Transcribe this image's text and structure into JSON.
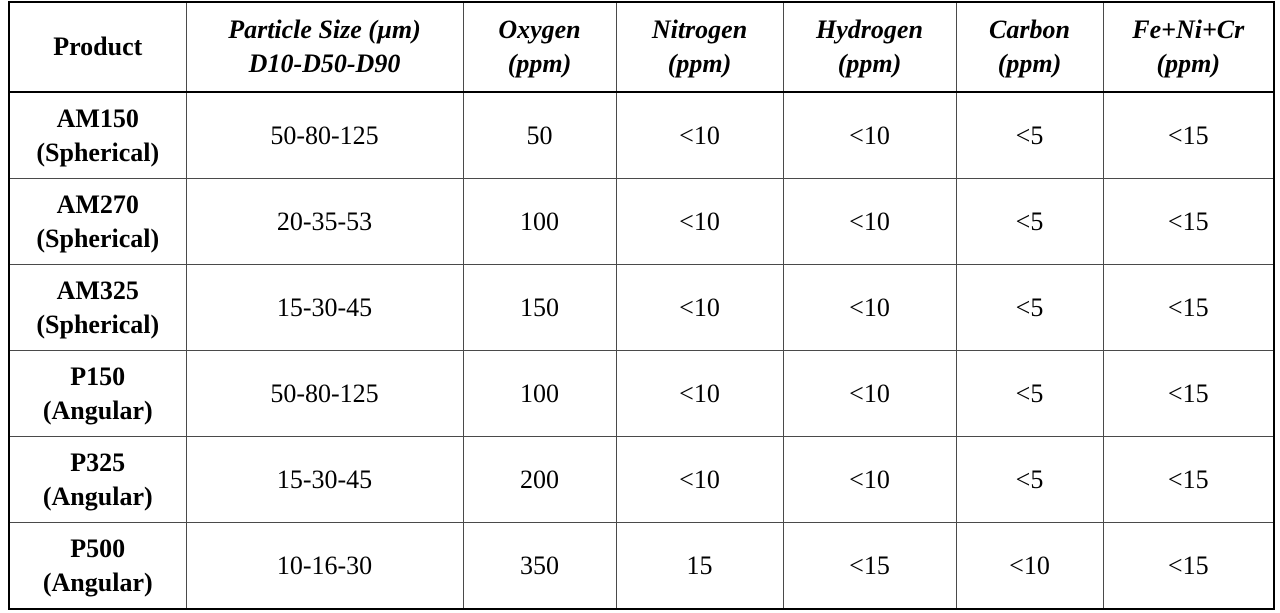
{
  "table": {
    "headers": [
      {
        "line1": "Product",
        "line2": ""
      },
      {
        "line1": "Particle Size (µm)",
        "line2": "D10-D50-D90"
      },
      {
        "line1": "Oxygen",
        "line2": "(ppm)"
      },
      {
        "line1": "Nitrogen",
        "line2": "(ppm)"
      },
      {
        "line1": "Hydrogen",
        "line2": "(ppm)"
      },
      {
        "line1": "Carbon",
        "line2": "(ppm)"
      },
      {
        "line1": "Fe+Ni+Cr",
        "line2": "(ppm)"
      }
    ],
    "rows": [
      {
        "product": "AM150",
        "shape": "(Spherical)",
        "particle_size": "50-80-125",
        "oxygen": "50",
        "nitrogen": "<10",
        "hydrogen": "<10",
        "carbon": "<5",
        "fe_ni_cr": "<15"
      },
      {
        "product": "AM270",
        "shape": "(Spherical)",
        "particle_size": "20-35-53",
        "oxygen": "100",
        "nitrogen": "<10",
        "hydrogen": "<10",
        "carbon": "<5",
        "fe_ni_cr": "<15"
      },
      {
        "product": "AM325",
        "shape": "(Spherical)",
        "particle_size": "15-30-45",
        "oxygen": "150",
        "nitrogen": "<10",
        "hydrogen": "<10",
        "carbon": "<5",
        "fe_ni_cr": "<15"
      },
      {
        "product": "P150",
        "shape": "(Angular)",
        "particle_size": "50-80-125",
        "oxygen": "100",
        "nitrogen": "<10",
        "hydrogen": "<10",
        "carbon": "<5",
        "fe_ni_cr": "<15"
      },
      {
        "product": "P325",
        "shape": "(Angular)",
        "particle_size": "15-30-45",
        "oxygen": "200",
        "nitrogen": "<10",
        "hydrogen": "<10",
        "carbon": "<5",
        "fe_ni_cr": "<15"
      },
      {
        "product": "P500",
        "shape": "(Angular)",
        "particle_size": "10-16-30",
        "oxygen": "350",
        "nitrogen": "15",
        "hydrogen": "<15",
        "carbon": "<10",
        "fe_ni_cr": "<15"
      }
    ]
  }
}
